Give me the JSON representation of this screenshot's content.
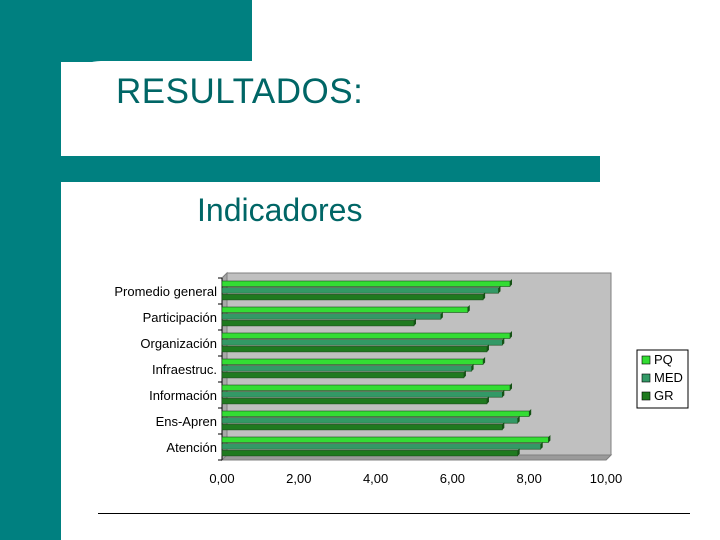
{
  "slide": {
    "title": "RESULTADOS:",
    "subtitle": "Indicadores"
  },
  "theme": {
    "teal": "#008080",
    "title_color": "#006666",
    "plot_background": "#c0c0c0"
  },
  "chart_data": {
    "type": "bar",
    "orientation": "horizontal",
    "categories": [
      "Promedio general",
      "Participación",
      "Organización",
      "Infraestruc.",
      "Información",
      "Ens-Apren",
      "Atención"
    ],
    "series": [
      {
        "name": "PQ",
        "color": "#33dd33",
        "values": [
          7.5,
          6.4,
          7.5,
          6.8,
          7.5,
          8.0,
          8.5
        ]
      },
      {
        "name": "MED",
        "color": "#339966",
        "values": [
          7.2,
          5.7,
          7.3,
          6.5,
          7.3,
          7.7,
          8.3
        ]
      },
      {
        "name": "GR",
        "color": "#1f7a1f",
        "values": [
          6.8,
          5.0,
          6.9,
          6.3,
          6.9,
          7.3,
          7.7
        ]
      }
    ],
    "x_ticks": [
      "0,00",
      "2,00",
      "4,00",
      "6,00",
      "8,00",
      "10,00"
    ],
    "xlim": [
      0,
      10
    ],
    "legend_position": "right",
    "grid": false
  }
}
